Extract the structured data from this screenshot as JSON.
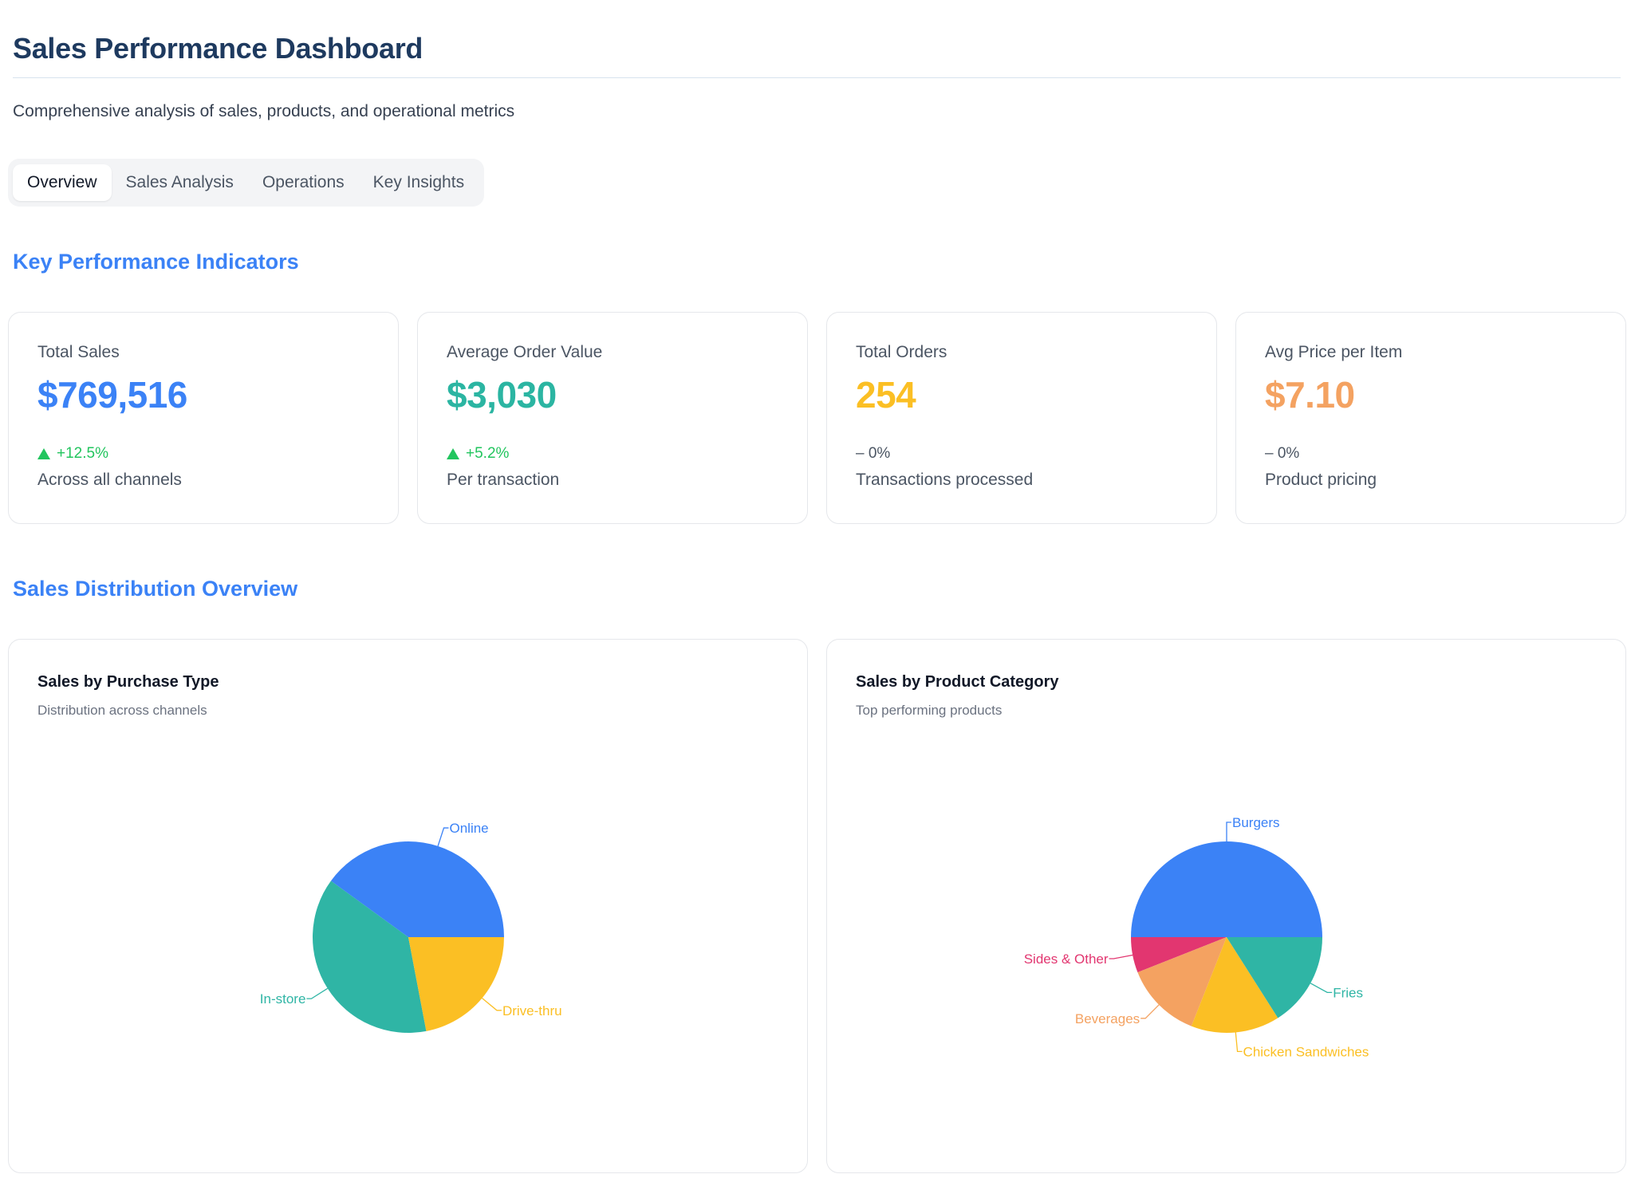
{
  "header": {
    "title": "Sales Performance Dashboard",
    "subtitle": "Comprehensive analysis of sales, products, and operational metrics"
  },
  "tabs": [
    {
      "label": "Overview",
      "active": true
    },
    {
      "label": "Sales Analysis",
      "active": false
    },
    {
      "label": "Operations",
      "active": false
    },
    {
      "label": "Key Insights",
      "active": false
    }
  ],
  "sections": {
    "kpi_title": "Key Performance Indicators",
    "distribution_title": "Sales Distribution Overview"
  },
  "kpis": [
    {
      "label": "Total Sales",
      "value": "$769,516",
      "change": "+12.5%",
      "trend": "up",
      "description": "Across all channels",
      "color": "#3b82f6"
    },
    {
      "label": "Average Order Value",
      "value": "$3,030",
      "change": "+5.2%",
      "trend": "up",
      "description": "Per transaction",
      "color": "#2bb5a2"
    },
    {
      "label": "Total Orders",
      "value": "254",
      "change": "– 0%",
      "trend": "flat",
      "description": "Transactions processed",
      "color": "#fbbf24"
    },
    {
      "label": "Avg Price per Item",
      "value": "$7.10",
      "change": "– 0%",
      "trend": "flat",
      "description": "Product pricing",
      "color": "#f4a261"
    }
  ],
  "charts": {
    "purchase_type": {
      "title": "Sales by Purchase Type",
      "subtitle": "Distribution across channels"
    },
    "product_category": {
      "title": "Sales by Product Category",
      "subtitle": "Top performing products"
    }
  },
  "chart_data": [
    {
      "type": "pie",
      "title": "Sales by Purchase Type",
      "subtitle": "Distribution across channels",
      "categories": [
        "Online",
        "In-store",
        "Drive-thru"
      ],
      "values": [
        40,
        38,
        22
      ],
      "colors": [
        "#3b82f6",
        "#2fb5a5",
        "#fbbf24"
      ]
    },
    {
      "type": "pie",
      "title": "Sales by Product Category",
      "subtitle": "Top performing products",
      "categories": [
        "Burgers",
        "Sides & Other",
        "Beverages",
        "Chicken Sandwiches",
        "Fries"
      ],
      "values": [
        50,
        6,
        13,
        15,
        16
      ],
      "colors": [
        "#3b82f6",
        "#e23670",
        "#f4a261",
        "#fbbf24",
        "#2fb5a5"
      ]
    }
  ]
}
